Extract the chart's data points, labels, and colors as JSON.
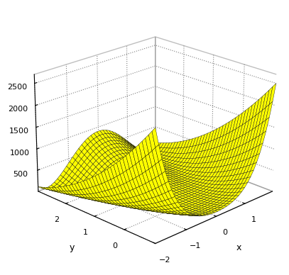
{
  "x_range": [
    -2,
    2
  ],
  "y_range": [
    -1,
    3
  ],
  "z_ticks": [
    500,
    1000,
    1500,
    2000,
    2500
  ],
  "n_points": 40,
  "surface_color": "#ffff00",
  "edge_color": "#111111",
  "alpha": 1.0,
  "xlabel": "x",
  "ylabel": "y",
  "elev": 22,
  "azim": 225,
  "linewidth": 0.3,
  "zlim": [
    0,
    2700
  ]
}
